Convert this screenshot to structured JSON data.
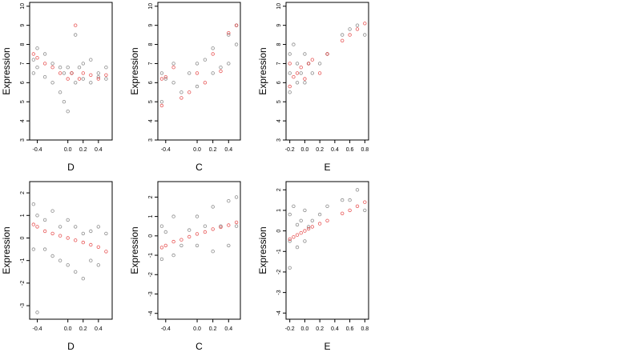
{
  "chart_data": [
    {
      "type": "scatter",
      "title": "",
      "xlabel": "D",
      "ylabel": "Expression",
      "xlim": [
        -0.5,
        0.58
      ],
      "ylim": [
        3,
        10.2
      ],
      "xticks": [
        -0.4,
        0.0,
        0.2,
        0.4
      ],
      "xtick_labels": [
        "-0.4",
        "0.0",
        "0.2",
        "0.4"
      ],
      "yticks": [
        3,
        4,
        5,
        6,
        7,
        8,
        9,
        10
      ],
      "ytick_labels": [
        "3",
        "4",
        "5",
        "6",
        "7",
        "8",
        "9",
        "10"
      ],
      "grid": false,
      "legend_placement": "none",
      "series": [
        {
          "color": "#000000",
          "kind": "observed",
          "x": [
            -0.45,
            -0.45,
            -0.4,
            -0.4,
            -0.3,
            -0.3,
            -0.2,
            -0.2,
            -0.1,
            -0.1,
            -0.05,
            -0.05,
            0.0,
            0.0,
            0.05,
            0.1,
            0.1,
            0.15,
            0.2,
            0.2,
            0.3,
            0.3,
            0.4,
            0.4,
            0.5,
            0.5
          ],
          "y": [
            7.2,
            6.5,
            7.8,
            6.8,
            7.5,
            6.3,
            7.0,
            6.0,
            6.8,
            5.5,
            6.5,
            5.0,
            6.8,
            4.5,
            6.5,
            8.5,
            6.0,
            6.8,
            7.0,
            6.2,
            7.2,
            6.0,
            6.5,
            6.3,
            6.8,
            6.2
          ]
        },
        {
          "color": "#e02020",
          "kind": "fitted",
          "x": [
            -0.45,
            -0.4,
            -0.3,
            -0.2,
            -0.1,
            0.0,
            0.05,
            0.1,
            0.15,
            0.2,
            0.3,
            0.4,
            0.5
          ],
          "y": [
            7.5,
            7.3,
            7.0,
            6.8,
            6.5,
            6.2,
            6.5,
            9.0,
            6.2,
            6.5,
            6.4,
            6.2,
            6.4
          ]
        }
      ]
    },
    {
      "type": "scatter",
      "title": "",
      "xlabel": "C",
      "ylabel": "Expression",
      "xlim": [
        -0.5,
        0.55
      ],
      "ylim": [
        3,
        10.2
      ],
      "xticks": [
        -0.4,
        0.0,
        0.2,
        0.4
      ],
      "xtick_labels": [
        "-0.4",
        "0.0",
        "0.2",
        "0.4"
      ],
      "yticks": [
        3,
        4,
        5,
        6,
        7,
        8,
        9,
        10
      ],
      "ytick_labels": [
        "3",
        "4",
        "5",
        "6",
        "7",
        "8",
        "9",
        "10"
      ],
      "grid": false,
      "legend_placement": "none",
      "series": [
        {
          "color": "#000000",
          "kind": "observed",
          "x": [
            -0.45,
            -0.45,
            -0.4,
            -0.3,
            -0.3,
            -0.2,
            -0.1,
            0.0,
            0.0,
            0.1,
            0.2,
            0.2,
            0.3,
            0.4,
            0.4,
            0.5,
            0.5
          ],
          "y": [
            6.5,
            5.0,
            6.2,
            7.0,
            6.0,
            5.5,
            6.5,
            7.0,
            5.8,
            7.2,
            7.8,
            6.5,
            6.8,
            8.5,
            7.0,
            9.0,
            8.0
          ]
        },
        {
          "color": "#e02020",
          "kind": "fitted",
          "x": [
            -0.45,
            -0.45,
            -0.4,
            -0.3,
            -0.2,
            -0.1,
            0.0,
            0.1,
            0.2,
            0.3,
            0.4,
            0.5
          ],
          "y": [
            6.2,
            4.8,
            6.3,
            6.8,
            5.2,
            5.5,
            6.5,
            6.0,
            7.5,
            6.6,
            8.6,
            9.0
          ]
        }
      ]
    },
    {
      "type": "scatter",
      "title": "",
      "xlabel": "E",
      "ylabel": "Expression",
      "xlim": [
        -0.25,
        0.85
      ],
      "ylim": [
        3,
        10.2
      ],
      "xticks": [
        -0.2,
        0.0,
        0.2,
        0.4,
        0.6,
        0.8
      ],
      "xtick_labels": [
        "-0.2",
        "0.0",
        "0.2",
        "0.4",
        "0.6",
        "0.8"
      ],
      "yticks": [
        3,
        4,
        5,
        6,
        7,
        8,
        9,
        10
      ],
      "ytick_labels": [
        "3",
        "4",
        "5",
        "6",
        "7",
        "8",
        "9",
        "10"
      ],
      "grid": false,
      "legend_placement": "none",
      "series": [
        {
          "color": "#000000",
          "kind": "observed",
          "x": [
            -0.2,
            -0.2,
            -0.2,
            -0.15,
            -0.1,
            -0.1,
            -0.05,
            0.0,
            0.0,
            0.05,
            0.1,
            0.2,
            0.3,
            0.5,
            0.6,
            0.7,
            0.8
          ],
          "y": [
            7.5,
            6.5,
            5.5,
            8.0,
            7.0,
            6.0,
            6.5,
            7.5,
            6.0,
            7.0,
            6.5,
            7.0,
            7.5,
            8.5,
            8.8,
            9.0,
            8.5
          ]
        },
        {
          "color": "#e02020",
          "kind": "fitted",
          "x": [
            -0.2,
            -0.2,
            -0.15,
            -0.1,
            -0.05,
            0.0,
            0.05,
            0.1,
            0.2,
            0.3,
            0.5,
            0.6,
            0.7,
            0.8
          ],
          "y": [
            7.0,
            5.8,
            6.3,
            6.5,
            6.8,
            6.2,
            7.0,
            7.2,
            6.5,
            7.5,
            8.2,
            8.5,
            8.8,
            9.1
          ]
        }
      ]
    },
    {
      "type": "scatter",
      "title": "",
      "xlabel": "D",
      "ylabel": "Expression",
      "xlim": [
        -0.5,
        0.58
      ],
      "ylim": [
        -3.6,
        2.5
      ],
      "xticks": [
        -0.4,
        0.0,
        0.2,
        0.4
      ],
      "xtick_labels": [
        "-0.4",
        "0.0",
        "0.2",
        "0.4"
      ],
      "yticks": [
        -3,
        -2,
        -1,
        0,
        1,
        2
      ],
      "ytick_labels": [
        "-3",
        "-2",
        "-1",
        "0",
        "1",
        "2"
      ],
      "grid": false,
      "legend_placement": "none",
      "series": [
        {
          "color": "#000000",
          "kind": "observed",
          "x": [
            -0.45,
            -0.45,
            -0.4,
            -0.4,
            -0.3,
            -0.3,
            -0.2,
            -0.2,
            -0.1,
            -0.1,
            0.0,
            0.0,
            0.1,
            0.1,
            0.2,
            0.2,
            0.3,
            0.3,
            0.4,
            0.4,
            0.5
          ],
          "y": [
            1.5,
            -0.5,
            1.0,
            -3.3,
            0.8,
            -0.5,
            1.2,
            -0.8,
            0.5,
            -1.0,
            0.8,
            -1.2,
            0.5,
            -1.5,
            0.2,
            -1.8,
            0.3,
            -1.0,
            0.5,
            -1.2,
            0.2
          ]
        },
        {
          "color": "#e02020",
          "kind": "fitted",
          "x": [
            -0.45,
            -0.4,
            -0.3,
            -0.2,
            -0.1,
            0.0,
            0.1,
            0.2,
            0.3,
            0.4,
            0.5
          ],
          "y": [
            0.6,
            0.5,
            0.3,
            0.2,
            0.1,
            0.0,
            -0.1,
            -0.2,
            -0.3,
            -0.4,
            -0.6
          ]
        }
      ]
    },
    {
      "type": "scatter",
      "title": "",
      "xlabel": "C",
      "ylabel": "Expression",
      "xlim": [
        -0.5,
        0.55
      ],
      "ylim": [
        -4.3,
        2.8
      ],
      "xticks": [
        -0.4,
        0.0,
        0.2,
        0.4
      ],
      "xtick_labels": [
        "-0.4",
        "0.0",
        "0.2",
        "0.4"
      ],
      "yticks": [
        -4,
        -3,
        -2,
        -1,
        0,
        1,
        2
      ],
      "ytick_labels": [
        "-4",
        "-3",
        "-2",
        "-1",
        "0",
        "1",
        "2"
      ],
      "grid": false,
      "legend_placement": "none",
      "series": [
        {
          "color": "#000000",
          "kind": "observed",
          "x": [
            -0.45,
            -0.45,
            -0.4,
            -0.3,
            -0.3,
            -0.2,
            -0.1,
            0.0,
            0.0,
            0.1,
            0.2,
            0.2,
            0.3,
            0.4,
            0.4,
            0.5,
            0.5
          ],
          "y": [
            0.5,
            -1.2,
            0.2,
            1.0,
            -1.0,
            -0.5,
            0.3,
            1.0,
            -0.5,
            0.5,
            1.5,
            -0.8,
            0.5,
            1.8,
            -0.5,
            2.0,
            0.5
          ]
        },
        {
          "color": "#e02020",
          "kind": "fitted",
          "x": [
            -0.45,
            -0.4,
            -0.3,
            -0.2,
            -0.1,
            0.0,
            0.1,
            0.2,
            0.3,
            0.4,
            0.5
          ],
          "y": [
            -0.6,
            -0.5,
            -0.3,
            -0.2,
            -0.05,
            0.1,
            0.2,
            0.35,
            0.45,
            0.55,
            0.7
          ]
        }
      ]
    },
    {
      "type": "scatter",
      "title": "",
      "xlabel": "E",
      "ylabel": "Expression",
      "xlim": [
        -0.25,
        0.85
      ],
      "ylim": [
        -4.3,
        2.4
      ],
      "xticks": [
        -0.2,
        0.0,
        0.2,
        0.4,
        0.6,
        0.8
      ],
      "xtick_labels": [
        "-0.2",
        "0.0",
        "0.2",
        "0.4",
        "0.6",
        "0.8"
      ],
      "yticks": [
        -4,
        -3,
        -2,
        -1,
        0,
        1,
        2
      ],
      "ytick_labels": [
        "-4",
        "-3",
        "-2",
        "-1",
        "0",
        "1",
        "2"
      ],
      "grid": false,
      "legend_placement": "none",
      "series": [
        {
          "color": "#000000",
          "kind": "observed",
          "x": [
            -0.2,
            -0.2,
            -0.2,
            -0.15,
            -0.1,
            -0.1,
            -0.05,
            0.0,
            0.0,
            0.05,
            0.1,
            0.2,
            0.3,
            0.5,
            0.6,
            0.7,
            0.8
          ],
          "y": [
            0.8,
            -0.5,
            -1.8,
            1.2,
            0.3,
            -0.8,
            0.5,
            1.0,
            -0.5,
            0.2,
            0.5,
            0.8,
            1.2,
            1.5,
            1.5,
            2.0,
            1.0
          ]
        },
        {
          "color": "#e02020",
          "kind": "fitted",
          "x": [
            -0.2,
            -0.15,
            -0.1,
            -0.05,
            0.0,
            0.05,
            0.1,
            0.2,
            0.3,
            0.5,
            0.6,
            0.7,
            0.8
          ],
          "y": [
            -0.4,
            -0.3,
            -0.2,
            -0.1,
            0.0,
            0.1,
            0.2,
            0.35,
            0.5,
            0.85,
            1.0,
            1.2,
            1.4
          ]
        }
      ]
    }
  ]
}
